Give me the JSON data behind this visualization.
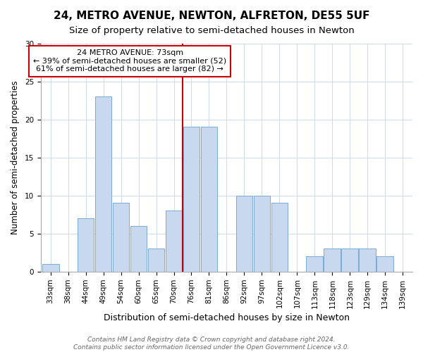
{
  "title": "24, METRO AVENUE, NEWTON, ALFRETON, DE55 5UF",
  "subtitle": "Size of property relative to semi-detached houses in Newton",
  "xlabel": "Distribution of semi-detached houses by size in Newton",
  "ylabel": "Number of semi-detached properties",
  "bin_labels": [
    "33sqm",
    "38sqm",
    "44sqm",
    "49sqm",
    "54sqm",
    "60sqm",
    "65sqm",
    "70sqm",
    "76sqm",
    "81sqm",
    "86sqm",
    "92sqm",
    "97sqm",
    "102sqm",
    "107sqm",
    "113sqm",
    "118sqm",
    "123sqm",
    "129sqm",
    "134sqm",
    "139sqm"
  ],
  "bar_heights": [
    1,
    0,
    7,
    23,
    9,
    6,
    3,
    8,
    19,
    19,
    0,
    10,
    10,
    9,
    0,
    2,
    3,
    3,
    3,
    2,
    0
  ],
  "bar_color": "#c8d8ee",
  "bar_edge_color": "#7baad4",
  "grid_color": "#d0dde8",
  "vline_x": 7.5,
  "vline_color": "#cc0000",
  "annotation_line1": "24 METRO AVENUE: 73sqm",
  "annotation_line2": "← 39% of semi-detached houses are smaller (52)",
  "annotation_line3": "61% of semi-detached houses are larger (82) →",
  "annotation_box_edge_color": "#cc0000",
  "footer_line1": "Contains HM Land Registry data © Crown copyright and database right 2024.",
  "footer_line2": "Contains public sector information licensed under the Open Government Licence v3.0.",
  "ylim": [
    0,
    30
  ],
  "title_fontsize": 11,
  "subtitle_fontsize": 9.5,
  "xlabel_fontsize": 9,
  "ylabel_fontsize": 8.5,
  "tick_fontsize": 7.5,
  "annot_fontsize": 8,
  "footer_fontsize": 6.5
}
